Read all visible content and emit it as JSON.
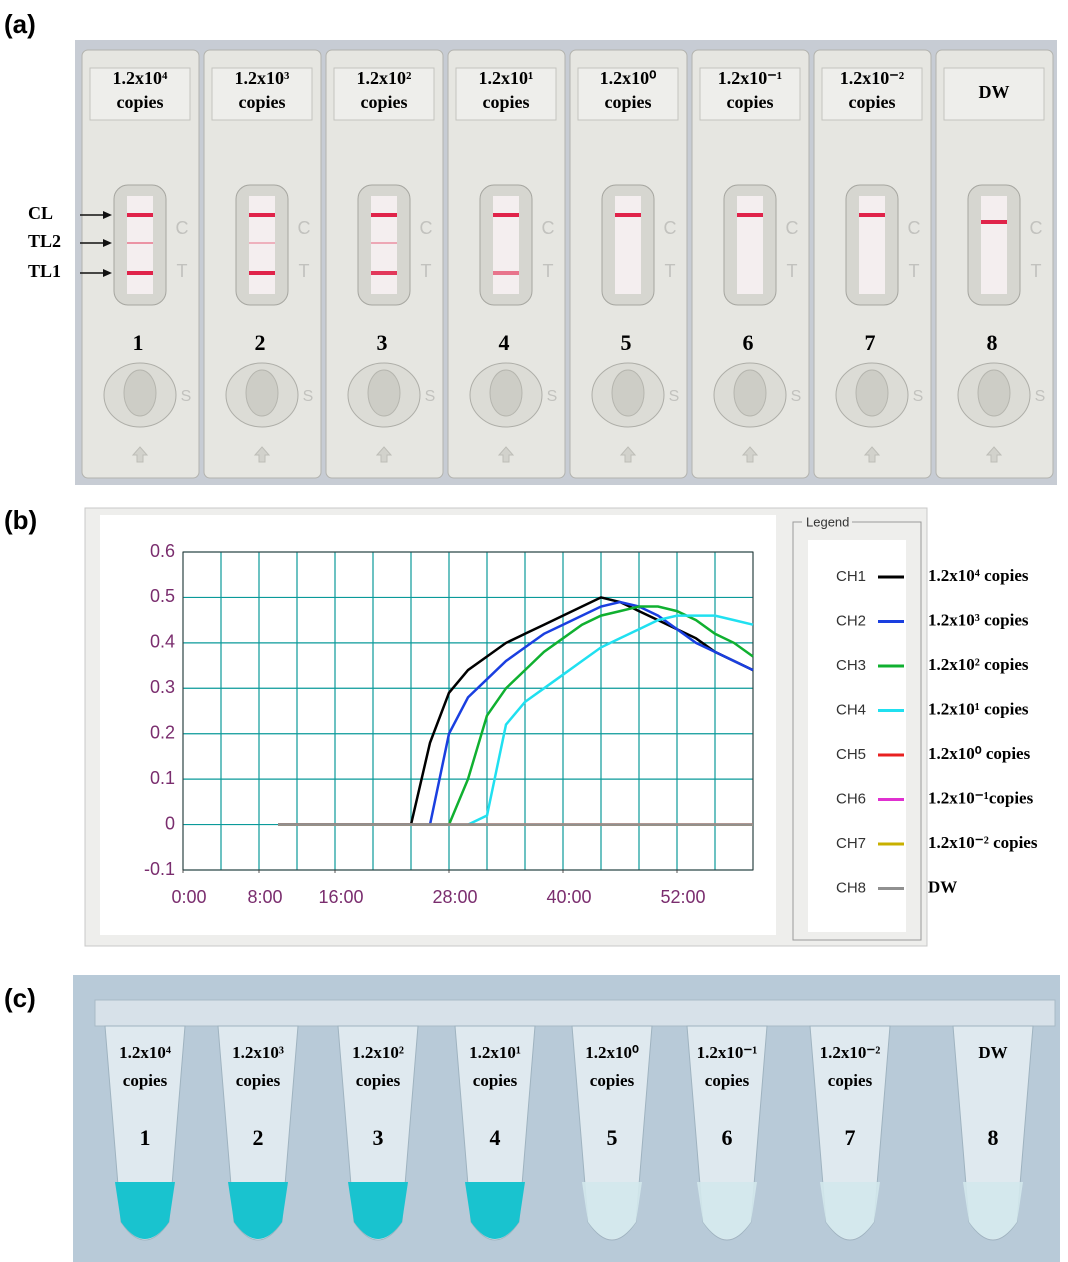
{
  "panel_a": {
    "label": "(a)",
    "strips": [
      {
        "amount": "1.2x10⁴",
        "unit": "copies",
        "number": "1"
      },
      {
        "amount": "1.2x10³",
        "unit": "copies",
        "number": "2"
      },
      {
        "amount": "1.2x10²",
        "unit": "copies",
        "number": "3"
      },
      {
        "amount": "1.2x10¹",
        "unit": "copies",
        "number": "4"
      },
      {
        "amount": "1.2x10⁰",
        "unit": "copies",
        "number": "5"
      },
      {
        "amount": "1.2x10⁻¹",
        "unit": "copies",
        "number": "6"
      },
      {
        "amount": "1.2x10⁻²",
        "unit": "copies",
        "number": "7"
      },
      {
        "amount": "DW",
        "number": "8"
      }
    ],
    "line_labels": [
      "CL",
      "TL2",
      "TL1"
    ],
    "control_mark": "C",
    "test_mark": "T",
    "sample_mark": "S"
  },
  "chart_data": {
    "type": "line",
    "panel_label": "(b)",
    "legend_title": "Legend",
    "x": [
      10,
      12,
      14,
      16,
      18,
      20,
      22,
      24,
      26,
      28,
      30,
      32,
      34,
      36,
      38,
      40,
      42,
      44,
      46,
      48,
      50,
      52,
      54,
      56,
      58,
      60
    ],
    "xlim": [
      0,
      60
    ],
    "xticks": [
      {
        "value": 0,
        "label": "0:00"
      },
      {
        "value": 8,
        "label": "8:00"
      },
      {
        "value": 16,
        "label": "16:00"
      },
      {
        "value": 28,
        "label": "28:00"
      },
      {
        "value": 40,
        "label": "40:00"
      },
      {
        "value": 52,
        "label": "52:00"
      }
    ],
    "xgrid": [
      0,
      4,
      8,
      12,
      16,
      20,
      24,
      28,
      32,
      36,
      40,
      44,
      48,
      52,
      56,
      60
    ],
    "ylim": [
      -0.1,
      0.6
    ],
    "yticks": [
      0.6,
      0.5,
      0.4,
      0.3,
      0.2,
      0.1,
      0,
      -0.1
    ],
    "grid": true,
    "series": [
      {
        "name": "CH1",
        "label": "1.2x10⁴ copies",
        "color": "#000000",
        "values": [
          0,
          0,
          0,
          0,
          0,
          0,
          0,
          0,
          0.18,
          0.29,
          0.34,
          0.37,
          0.4,
          0.42,
          0.44,
          0.46,
          0.48,
          0.5,
          0.49,
          0.47,
          0.45,
          0.43,
          0.41,
          0.38,
          0.36,
          0.34
        ]
      },
      {
        "name": "CH2",
        "label": "1.2x10³ copies",
        "color": "#1a3fe0",
        "values": [
          0,
          0,
          0,
          0,
          0,
          0,
          0,
          0,
          0,
          0.2,
          0.28,
          0.32,
          0.36,
          0.39,
          0.42,
          0.44,
          0.46,
          0.48,
          0.49,
          0.48,
          0.46,
          0.43,
          0.4,
          0.38,
          0.36,
          0.34
        ]
      },
      {
        "name": "CH3",
        "label": "1.2x10² copies",
        "color": "#10b030",
        "values": [
          0,
          0,
          0,
          0,
          0,
          0,
          0,
          0,
          0,
          0,
          0.1,
          0.24,
          0.3,
          0.34,
          0.38,
          0.41,
          0.44,
          0.46,
          0.47,
          0.48,
          0.48,
          0.47,
          0.45,
          0.42,
          0.4,
          0.37
        ]
      },
      {
        "name": "CH4",
        "label": "1.2x10¹ copies",
        "color": "#20e0f0",
        "values": [
          0,
          0,
          0,
          0,
          0,
          0,
          0,
          0,
          0,
          0,
          0,
          0.02,
          0.22,
          0.27,
          0.3,
          0.33,
          0.36,
          0.39,
          0.41,
          0.43,
          0.45,
          0.46,
          0.46,
          0.46,
          0.45,
          0.44
        ]
      },
      {
        "name": "CH5",
        "label": "1.2x10⁰ copies",
        "color": "#e82020",
        "values": [
          0,
          0,
          0,
          0,
          0,
          0,
          0,
          0,
          0,
          0,
          0,
          0,
          0,
          0,
          0,
          0,
          0,
          0,
          0,
          0,
          0,
          0,
          0,
          0,
          0,
          0
        ]
      },
      {
        "name": "CH6",
        "label": "1.2x10⁻¹copies",
        "color": "#e030d0",
        "values": [
          0,
          0,
          0,
          0,
          0,
          0,
          0,
          0,
          0,
          0,
          0,
          0,
          0,
          0,
          0,
          0,
          0,
          0,
          0,
          0,
          0,
          0,
          0,
          0,
          0,
          0
        ]
      },
      {
        "name": "CH7",
        "label": "1.2x10⁻² copies",
        "color": "#c8b000",
        "values": [
          0,
          0,
          0,
          0,
          0,
          0,
          0,
          0,
          0,
          0,
          0,
          0,
          0,
          0,
          0,
          0,
          0,
          0,
          0,
          0,
          0,
          0,
          0,
          0,
          0,
          0
        ]
      },
      {
        "name": "CH8",
        "label": "DW",
        "color": "#909090",
        "values": [
          0,
          0,
          0,
          0,
          0,
          0,
          0,
          0,
          0,
          0,
          0,
          0,
          0,
          0,
          0,
          0,
          0,
          0,
          0,
          0,
          0,
          0,
          0,
          0,
          0,
          0
        ]
      }
    ]
  },
  "panel_c": {
    "label": "(c)",
    "tubes": [
      {
        "amount": "1.2x10⁴",
        "unit": "copies",
        "number": "1"
      },
      {
        "amount": "1.2x10³",
        "unit": "copies",
        "number": "2"
      },
      {
        "amount": "1.2x10²",
        "unit": "copies",
        "number": "3"
      },
      {
        "amount": "1.2x10¹",
        "unit": "copies",
        "number": "4"
      },
      {
        "amount": "1.2x10⁰",
        "unit": "copies",
        "number": "5"
      },
      {
        "amount": "1.2x10⁻¹",
        "unit": "copies",
        "number": "6"
      },
      {
        "amount": "1.2x10⁻²",
        "unit": "copies",
        "number": "7"
      },
      {
        "amount": "DW",
        "number": "8"
      }
    ]
  }
}
